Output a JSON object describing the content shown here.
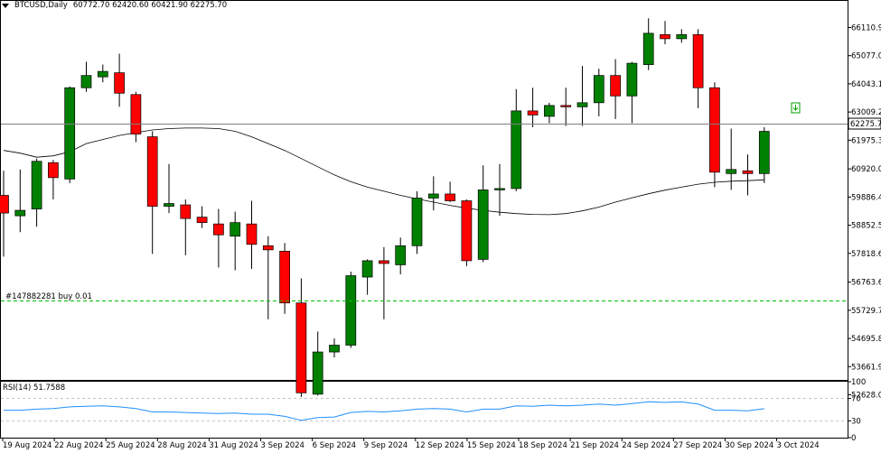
{
  "header": {
    "symbol": "BTCUSD,Daily",
    "ohlc": "60772.70 62420.60 60421.90 62275.70"
  },
  "current_price": "62275.70",
  "order_line_label": "#147882281 buy 0.01",
  "rsi_label": "RSI(14) 51.7588",
  "colors": {
    "bull": "#008000",
    "bear": "#ff0000",
    "ma": "#000000",
    "rsi": "#1e90ff",
    "order": "#00c000"
  },
  "chart_data": [
    {
      "type": "candlestick",
      "title": "BTCUSD,Daily",
      "price_axis_ticks": [
        "66110.90",
        "65077.00",
        "64043.10",
        "63009.20",
        "61975.30",
        "60920.00",
        "59886.40",
        "58852.50",
        "57818.60",
        "56763.60",
        "55729.70",
        "54695.80",
        "53661.90",
        "52628.00"
      ],
      "date_labels": [
        "19 Aug 2024",
        "22 Aug 2024",
        "25 Aug 2024",
        "28 Aug 2024",
        "31 Aug 2024",
        "3 Sep 2024",
        "6 Sep 2024",
        "9 Sep 2024",
        "12 Sep 2024",
        "15 Sep 2024",
        "18 Sep 2024",
        "21 Sep 2024",
        "24 Sep 2024",
        "27 Sep 2024",
        "30 Sep 2024",
        "3 Oct 2024"
      ],
      "ylim": [
        52200,
        66950
      ],
      "candles": [
        {
          "o": 59950,
          "h": 60850,
          "l": 57700,
          "c": 59300
        },
        {
          "o": 59200,
          "h": 60900,
          "l": 58600,
          "c": 59400
        },
        {
          "o": 59450,
          "h": 61300,
          "l": 58800,
          "c": 61200
        },
        {
          "o": 61150,
          "h": 61250,
          "l": 59800,
          "c": 60600
        },
        {
          "o": 60550,
          "h": 63950,
          "l": 60400,
          "c": 63900
        },
        {
          "o": 63900,
          "h": 64850,
          "l": 63750,
          "c": 64350
        },
        {
          "o": 64300,
          "h": 64750,
          "l": 64100,
          "c": 64500
        },
        {
          "o": 64450,
          "h": 65150,
          "l": 63200,
          "c": 63700
        },
        {
          "o": 63650,
          "h": 63750,
          "l": 61900,
          "c": 62200
        },
        {
          "o": 62100,
          "h": 62300,
          "l": 57800,
          "c": 59550
        },
        {
          "o": 59550,
          "h": 61100,
          "l": 59300,
          "c": 59650
        },
        {
          "o": 59600,
          "h": 59800,
          "l": 57750,
          "c": 59100
        },
        {
          "o": 59150,
          "h": 59550,
          "l": 58750,
          "c": 58950
        },
        {
          "o": 58900,
          "h": 59450,
          "l": 57300,
          "c": 58500
        },
        {
          "o": 58450,
          "h": 59350,
          "l": 57200,
          "c": 58950
        },
        {
          "o": 58900,
          "h": 59750,
          "l": 57250,
          "c": 58150
        },
        {
          "o": 58100,
          "h": 58450,
          "l": 55400,
          "c": 57950
        },
        {
          "o": 57900,
          "h": 58200,
          "l": 55600,
          "c": 56000
        },
        {
          "o": 56000,
          "h": 56900,
          "l": 52550,
          "c": 52700
        },
        {
          "o": 52650,
          "h": 54950,
          "l": 52600,
          "c": 54200
        },
        {
          "o": 54200,
          "h": 54700,
          "l": 54000,
          "c": 54450
        },
        {
          "o": 54450,
          "h": 57150,
          "l": 54350,
          "c": 57000
        },
        {
          "o": 56950,
          "h": 57600,
          "l": 56300,
          "c": 57550
        },
        {
          "o": 57550,
          "h": 58050,
          "l": 55400,
          "c": 57450
        },
        {
          "o": 57400,
          "h": 58400,
          "l": 57050,
          "c": 58100
        },
        {
          "o": 58100,
          "h": 60100,
          "l": 57800,
          "c": 59850
        },
        {
          "o": 59850,
          "h": 60650,
          "l": 59400,
          "c": 60000
        },
        {
          "o": 60000,
          "h": 60450,
          "l": 59700,
          "c": 59750
        },
        {
          "o": 59750,
          "h": 59800,
          "l": 57350,
          "c": 57550
        },
        {
          "o": 57600,
          "h": 61050,
          "l": 57500,
          "c": 60150
        },
        {
          "o": 60150,
          "h": 61100,
          "l": 59200,
          "c": 60200
        },
        {
          "o": 60200,
          "h": 63850,
          "l": 60100,
          "c": 63050
        },
        {
          "o": 63050,
          "h": 63900,
          "l": 62450,
          "c": 62900
        },
        {
          "o": 62850,
          "h": 63350,
          "l": 62600,
          "c": 63250
        },
        {
          "o": 63250,
          "h": 63900,
          "l": 62500,
          "c": 63200
        },
        {
          "o": 63200,
          "h": 64700,
          "l": 62500,
          "c": 63350
        },
        {
          "o": 63350,
          "h": 64600,
          "l": 62850,
          "c": 64350
        },
        {
          "o": 64350,
          "h": 64950,
          "l": 62750,
          "c": 63600
        },
        {
          "o": 63600,
          "h": 64850,
          "l": 62600,
          "c": 64800
        },
        {
          "o": 64750,
          "h": 66450,
          "l": 64550,
          "c": 65900
        },
        {
          "o": 65850,
          "h": 66350,
          "l": 65500,
          "c": 65700
        },
        {
          "o": 65700,
          "h": 66050,
          "l": 65550,
          "c": 65850
        },
        {
          "o": 65850,
          "h": 66050,
          "l": 63150,
          "c": 63900
        },
        {
          "o": 63900,
          "h": 64100,
          "l": 60250,
          "c": 60800
        },
        {
          "o": 60750,
          "h": 62400,
          "l": 60150,
          "c": 60900
        },
        {
          "o": 60850,
          "h": 61450,
          "l": 59950,
          "c": 60750
        },
        {
          "o": 60750,
          "h": 62450,
          "l": 60400,
          "c": 62300
        }
      ],
      "ma": [
        61600,
        61500,
        61350,
        61400,
        61550,
        61850,
        62000,
        62150,
        62250,
        62350,
        62400,
        62420,
        62420,
        62400,
        62300,
        62100,
        61850,
        61600,
        61300,
        61000,
        60700,
        60450,
        60250,
        60100,
        59950,
        59820,
        59700,
        59580,
        59480,
        59400,
        59330,
        59280,
        59250,
        59240,
        59280,
        59380,
        59520,
        59700,
        59860,
        60010,
        60140,
        60250,
        60360,
        60430,
        60470,
        60490,
        60520
      ],
      "rsi_axis_ticks": [
        "100",
        "70",
        "30",
        "0"
      ],
      "rsi": [
        49,
        49,
        51,
        52,
        55,
        56,
        57,
        55,
        52,
        46,
        46,
        45,
        44,
        43,
        44,
        42,
        42,
        38,
        31,
        36,
        37,
        45,
        47,
        46,
        48,
        51,
        52,
        51,
        46,
        51,
        51,
        57,
        56,
        58,
        57,
        58,
        60,
        58,
        61,
        64,
        63,
        64,
        60,
        49,
        49,
        48,
        51.8
      ]
    }
  ]
}
